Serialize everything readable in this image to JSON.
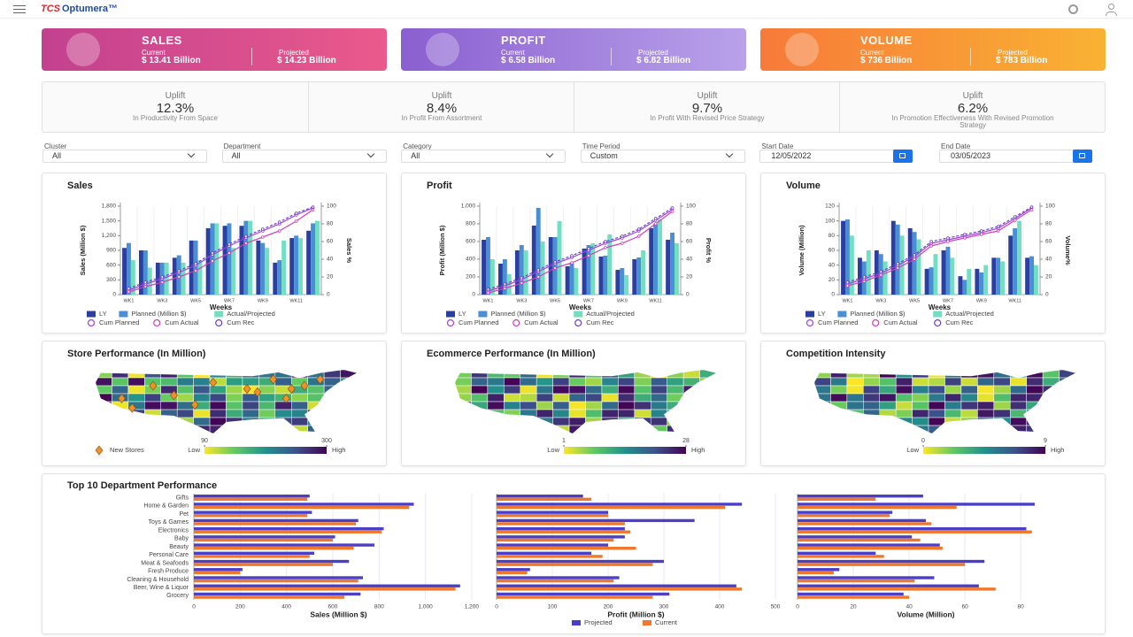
{
  "header": {
    "brand": "TCS",
    "product": "Optumera™"
  },
  "kpis": [
    {
      "title": "SALES",
      "current_label": "Current",
      "current": "$ 13.41 Billion",
      "projected_label": "Projected",
      "projected": "$ 14.23 Billion"
    },
    {
      "title": "PROFIT",
      "current_label": "Current",
      "current": "$ 6.58 Billion",
      "projected_label": "Projected",
      "projected": "$ 6.82 Billion"
    },
    {
      "title": "VOLUME",
      "current_label": "Current",
      "current": "$ 736 Billion",
      "projected_label": "Projected",
      "projected": "$ 783 Billion"
    }
  ],
  "uplifts": [
    {
      "label": "Uplift",
      "value": "12.3%",
      "desc": "In Productivity From Space"
    },
    {
      "label": "Uplift",
      "value": "8.4%",
      "desc": "In Profit From Assortment"
    },
    {
      "label": "Uplift",
      "value": "9.7%",
      "desc": "In Profit With Revised Price Strategy"
    },
    {
      "label": "Uplift",
      "value": "6.2%",
      "desc": "In Promotion Effectiveness With Revised Promotion Strategy"
    }
  ],
  "filters": [
    {
      "label": "Cluster",
      "value": "All"
    },
    {
      "label": "Department",
      "value": "All"
    },
    {
      "label": "Category",
      "value": "All"
    },
    {
      "label": "Time Period",
      "value": "Custom"
    },
    {
      "label": "Start Date",
      "value": "12/05/2022"
    },
    {
      "label": "End Date",
      "value": "03/05/2023"
    }
  ],
  "chart_data": [
    {
      "type": "combo",
      "title": "Sales",
      "xlabel": "Weeks",
      "ylabel": "Sales (Million $)",
      "y2label": "Sales %",
      "categories": [
        "WK1",
        null,
        "WK3",
        null,
        "WK5",
        null,
        "WK7",
        null,
        "WK9",
        null,
        "WK11",
        null
      ],
      "ylim": [
        0,
        1800
      ],
      "yticks": [
        0,
        300,
        600,
        900,
        {
          "value": 1200,
          "label": "1,200"
        },
        {
          "value": 1500,
          "label": "1,500"
        },
        {
          "value": 1800,
          "label": "1,800"
        }
      ],
      "y2lim": [
        0,
        100
      ],
      "y2ticks": [
        0,
        20,
        40,
        60,
        80,
        100
      ],
      "series": [
        {
          "name": "LY",
          "kind": "bar",
          "color": "#2b3f9e",
          "values": [
            950,
            900,
            650,
            750,
            1100,
            1350,
            1400,
            1400,
            1100,
            650,
            1150,
            1300
          ]
        },
        {
          "name": "Planned (Million $)",
          "kind": "bar",
          "color": "#4a8fd6",
          "values": [
            1050,
            900,
            650,
            800,
            1100,
            1450,
            1450,
            1500,
            1050,
            700,
            1200,
            1450
          ]
        },
        {
          "name": "Actual/Projected",
          "kind": "bar",
          "color": "#72dfc2",
          "values": [
            700,
            550,
            650,
            650,
            700,
            1450,
            950,
            1500,
            950,
            1100,
            1150,
            1500
          ]
        },
        {
          "name": "Cum Planned",
          "kind": "line",
          "axis": "y2",
          "color": "#a040e0",
          "values": [
            5,
            12,
            18,
            25,
            33,
            45,
            55,
            64,
            72,
            80,
            90,
            98
          ]
        },
        {
          "name": "Cum Actual",
          "kind": "line",
          "axis": "y2",
          "color": "#d040b8",
          "values": [
            3,
            9,
            14,
            20,
            27,
            38,
            47,
            58,
            65,
            72,
            83,
            96
          ]
        },
        {
          "name": "Cum Rec",
          "kind": "line",
          "axis": "y2",
          "color": "#6a40c8",
          "dashed": true,
          "values": [
            7,
            14,
            20,
            27,
            35,
            47,
            57,
            66,
            74,
            82,
            92,
            99
          ]
        }
      ]
    },
    {
      "type": "combo",
      "title": "Profit",
      "xlabel": "Weeks",
      "ylabel": "Profit (Million $)",
      "y2label": "Profit %",
      "categories": [
        "WK1",
        null,
        "WK3",
        null,
        "WK5",
        null,
        "WK7",
        null,
        "WK9",
        null,
        "WK11",
        null
      ],
      "ylim": [
        0,
        1000
      ],
      "yticks": [
        0,
        200,
        400,
        600,
        800,
        {
          "value": 1000,
          "label": "1,000"
        }
      ],
      "y2lim": [
        0,
        100
      ],
      "y2ticks": [
        0,
        20,
        40,
        60,
        80,
        100
      ],
      "series": [
        {
          "name": "LY",
          "kind": "bar",
          "color": "#2b3f9e",
          "values": [
            620,
            350,
            500,
            780,
            650,
            320,
            520,
            430,
            280,
            400,
            750,
            620
          ]
        },
        {
          "name": "Planned (Million $)",
          "kind": "bar",
          "color": "#4a8fd6",
          "values": [
            650,
            400,
            560,
            980,
            650,
            350,
            560,
            440,
            300,
            420,
            800,
            700
          ]
        },
        {
          "name": "Actual/Projected",
          "kind": "bar",
          "color": "#72dfc2",
          "values": [
            400,
            230,
            500,
            600,
            830,
            300,
            580,
            680,
            220,
            500,
            850,
            580
          ]
        },
        {
          "name": "Cum Planned",
          "kind": "line",
          "axis": "y2",
          "color": "#a040e0",
          "values": [
            4,
            10,
            17,
            26,
            35,
            42,
            50,
            58,
            64,
            72,
            84,
            96
          ]
        },
        {
          "name": "Cum Actual",
          "kind": "line",
          "axis": "y2",
          "color": "#d040b8",
          "values": [
            2,
            7,
            13,
            20,
            30,
            36,
            44,
            53,
            58,
            66,
            80,
            94
          ]
        },
        {
          "name": "Cum Rec",
          "kind": "line",
          "axis": "y2",
          "color": "#6a40c8",
          "dashed": true,
          "values": [
            6,
            12,
            19,
            28,
            37,
            44,
            52,
            60,
            66,
            74,
            86,
            98
          ]
        }
      ]
    },
    {
      "type": "combo",
      "title": "Volume",
      "xlabel": "Weeks",
      "ylabel": "Volume (Million)",
      "y2label": "Volume%",
      "categories": [
        "WK1",
        null,
        "WK3",
        null,
        "WK5",
        null,
        "WK7",
        null,
        "WK9",
        null,
        "WK11",
        null
      ],
      "ylim": [
        0,
        120
      ],
      "yticks": [
        0,
        20,
        40,
        60,
        80,
        100,
        120
      ],
      "y2lim": [
        0,
        100
      ],
      "y2ticks": [
        0,
        20,
        40,
        60,
        80,
        100
      ],
      "series": [
        {
          "name": "LY",
          "kind": "bar",
          "color": "#2b3f9e",
          "values": [
            100,
            50,
            60,
            100,
            90,
            35,
            60,
            25,
            35,
            50,
            80,
            50
          ]
        },
        {
          "name": "Planned (Million $)",
          "kind": "bar",
          "color": "#4a8fd6",
          "values": [
            102,
            45,
            55,
            95,
            85,
            37,
            65,
            20,
            30,
            50,
            90,
            52
          ]
        },
        {
          "name": "Actual/Projected",
          "kind": "bar",
          "color": "#72dfc2",
          "values": [
            80,
            60,
            45,
            80,
            75,
            55,
            50,
            35,
            40,
            45,
            100,
            40
          ]
        },
        {
          "name": "Cum Planned",
          "kind": "line",
          "axis": "y2",
          "color": "#a040e0",
          "values": [
            12,
            18,
            24,
            33,
            43,
            58,
            62,
            66,
            70,
            75,
            86,
            98
          ]
        },
        {
          "name": "Cum Actual",
          "kind": "line",
          "axis": "y2",
          "color": "#d040b8",
          "values": [
            10,
            15,
            22,
            30,
            40,
            55,
            60,
            64,
            68,
            72,
            84,
            96
          ]
        },
        {
          "name": "Cum Rec",
          "kind": "line",
          "axis": "y2",
          "color": "#6a40c8",
          "dashed": true,
          "values": [
            14,
            20,
            26,
            35,
            45,
            60,
            64,
            68,
            72,
            77,
            88,
            99
          ]
        }
      ]
    },
    {
      "type": "map",
      "title": "Store Performance (In Million)",
      "low": "Low",
      "high": "High",
      "clim": [
        90,
        300
      ],
      "cticks": [
        90,
        300
      ],
      "legend": "New Stores"
    },
    {
      "type": "map",
      "title": "Ecommerce Performance (In Million)",
      "low": "Low",
      "high": "High",
      "clim": [
        1,
        28
      ],
      "cticks": [
        1,
        28
      ]
    },
    {
      "type": "map",
      "title": "Competition Intensity",
      "low": "Low",
      "high": "High",
      "clim": [
        0,
        9
      ],
      "cticks": [
        0,
        9
      ]
    },
    {
      "type": "hbar",
      "title": "Top 10 Department Performance",
      "categories": [
        "Gifts",
        "Home & Garden",
        "Pet",
        "Toys & Games",
        "Electronics",
        "Baby",
        "Beauty",
        "Personal Care",
        "Meat & Seafoods",
        "Fresh Produce",
        "Cleaning & Household",
        "Beer, Wine & Liquor",
        "Grocery"
      ],
      "series": [
        {
          "name": "Projected",
          "color": "#4b3fc8"
        },
        {
          "name": "Current",
          "color": "#f0782d"
        }
      ],
      "grid": true,
      "panels": [
        {
          "xlabel": "Sales (Million $)",
          "xlim": [
            0,
            1250
          ],
          "xticks": [
            0,
            200,
            400,
            600,
            800,
            {
              "value": 1000,
              "label": "1,000"
            },
            {
              "value": 1200,
              "label": "1,200"
            }
          ],
          "values": [
            [
              500,
              950,
              510,
              710,
              820,
              610,
              780,
              520,
              670,
              210,
              730,
              1150,
              720
            ],
            [
              490,
              930,
              490,
              700,
              810,
              600,
              690,
              500,
              600,
              200,
              710,
              1130,
              650
            ]
          ]
        },
        {
          "xlabel": "Profit (Million $)",
          "xlim": [
            0,
            500
          ],
          "xticks": [
            0,
            100,
            200,
            300,
            400,
            500
          ],
          "values": [
            [
              155,
              440,
              200,
              355,
              230,
              230,
              200,
              170,
              300,
              60,
              220,
              430,
              310
            ],
            [
              170,
              410,
              200,
              230,
              240,
              210,
              250,
              190,
              280,
              55,
              210,
              440,
              280
            ]
          ]
        },
        {
          "xlabel": "Volume (Million)",
          "xlim": [
            0,
            92
          ],
          "xticks": [
            0,
            20,
            40,
            60,
            80
          ],
          "values": [
            [
              45,
              85,
              34,
              46,
              82,
              41,
              51,
              28,
              67,
              15,
              49,
              65,
              38
            ],
            [
              28,
              57,
              33,
              48,
              84,
              44,
              52,
              31,
              60,
              13,
              42,
              71,
              40
            ]
          ]
        }
      ]
    }
  ]
}
